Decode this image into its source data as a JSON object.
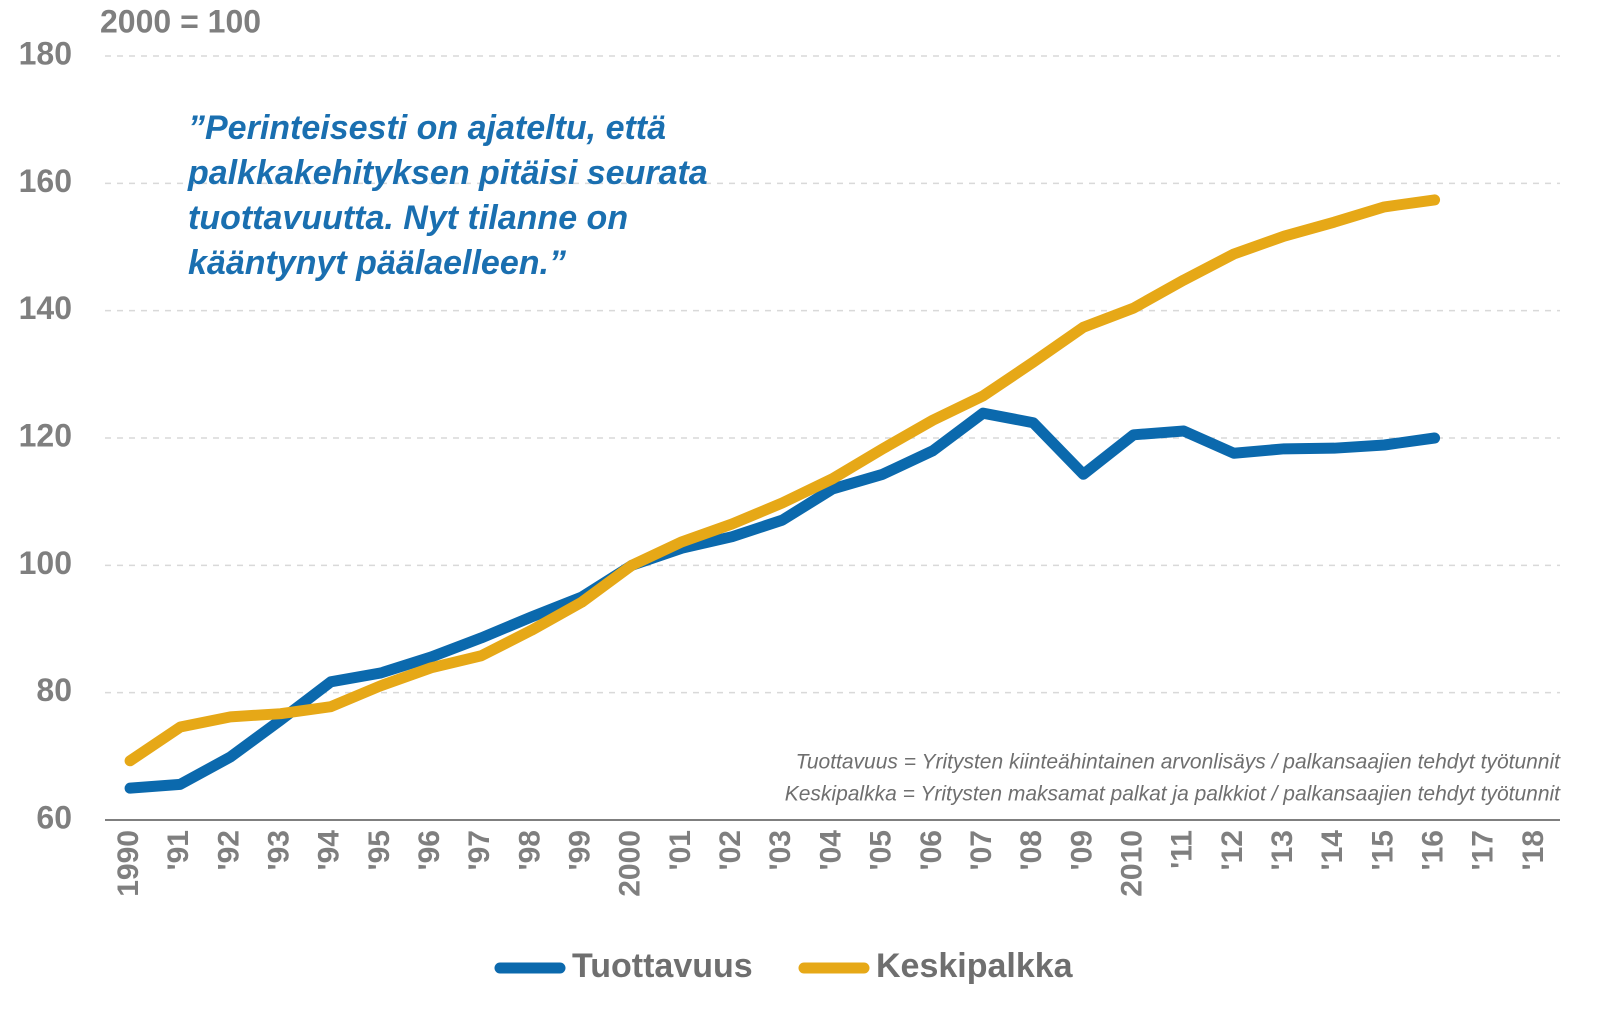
{
  "chart_data": {
    "type": "line",
    "y_axis_label": "2000 = 100",
    "annotations": [
      "”Perinteisesti on ajateltu, että",
      "palkkakehityksen pitäisi seurata",
      "tuottavuutta. Nyt tilanne on",
      "kääntynyt päälaelleen.”"
    ],
    "notes": [
      "Tuottavuus = Yritysten kiinteähintainen arvonlisäys / palkansaajien tehdyt työtunnit",
      "Keskipalkka = Yritysten maksamat palkat ja palkkiot / palkansaajien tehdyt työtunnit"
    ],
    "categories": [
      "1990",
      "'91",
      "'92",
      "'93",
      "'94",
      "'95",
      "'96",
      "'97",
      "'98",
      "'99",
      "2000",
      "'01",
      "'02",
      "'03",
      "'04",
      "'05",
      "'06",
      "'07",
      "'08",
      "'09",
      "2010",
      "'11",
      "'12",
      "'13",
      "'14",
      "'15",
      "'16",
      "'17",
      "'18"
    ],
    "series": [
      {
        "name": "Tuottavuus",
        "color": "#0b69ad",
        "values": [
          65.0,
          65.6,
          69.9,
          75.7,
          81.7,
          83.1,
          85.6,
          88.6,
          91.9,
          95.0,
          100,
          102.7,
          104.5,
          107.1,
          112.0,
          114.3,
          118.0,
          123.9,
          122.4,
          114.3,
          120.5,
          121.1,
          117.6,
          118.3,
          118.4,
          118.9,
          120.0,
          null,
          null
        ]
      },
      {
        "name": "Keskipalkka",
        "color": "#e6a817",
        "values": [
          69.3,
          74.6,
          76.2,
          76.7,
          77.8,
          81.1,
          83.9,
          85.8,
          89.8,
          94.2,
          100,
          103.7,
          106.5,
          109.8,
          113.6,
          118.3,
          122.8,
          126.6,
          131.9,
          137.4,
          140.4,
          144.8,
          148.9,
          151.7,
          153.9,
          156.3,
          157.4,
          null,
          null
        ]
      }
    ],
    "ylim": [
      60,
      180
    ],
    "yticks": [
      60,
      80,
      100,
      120,
      140,
      160,
      180
    ],
    "grid": true,
    "legend": "bottom"
  }
}
